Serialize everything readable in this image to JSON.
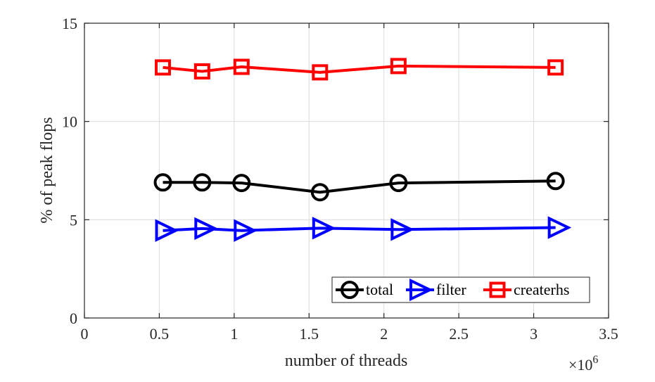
{
  "chart_data": {
    "type": "line",
    "xlabel": "number of threads",
    "ylabel": "% of peak flops",
    "xlim": [
      0,
      3.5
    ],
    "ylim": [
      0,
      15
    ],
    "x_multiplier_base": "×10",
    "x_multiplier_exp": "6",
    "x_ticks": [
      0,
      0.5,
      1,
      1.5,
      2,
      2.5,
      3,
      3.5
    ],
    "x_tick_labels": [
      "0",
      "0.5",
      "1",
      "1.5",
      "2",
      "2.5",
      "3",
      "3.5"
    ],
    "y_ticks": [
      0,
      5,
      10,
      15
    ],
    "y_tick_labels": [
      "0",
      "5",
      "10",
      "15"
    ],
    "grid": true,
    "legend_position": "bottom-right",
    "series": [
      {
        "name": "total",
        "color": "#000000",
        "marker": "circle",
        "x": [
          0.524,
          0.786,
          1.049,
          1.573,
          2.097,
          3.146
        ],
        "y": [
          6.9,
          6.9,
          6.87,
          6.4,
          6.87,
          6.97
        ]
      },
      {
        "name": "filter",
        "color": "#0000ff",
        "marker": "triangle-right",
        "x": [
          0.524,
          0.786,
          1.049,
          1.573,
          2.097,
          3.146
        ],
        "y": [
          4.45,
          4.55,
          4.45,
          4.57,
          4.5,
          4.6
        ]
      },
      {
        "name": "createrhs",
        "color": "#ff0000",
        "marker": "square",
        "x": [
          0.524,
          0.786,
          1.049,
          1.573,
          2.097,
          3.146
        ],
        "y": [
          12.75,
          12.55,
          12.78,
          12.5,
          12.82,
          12.75
        ]
      }
    ]
  }
}
